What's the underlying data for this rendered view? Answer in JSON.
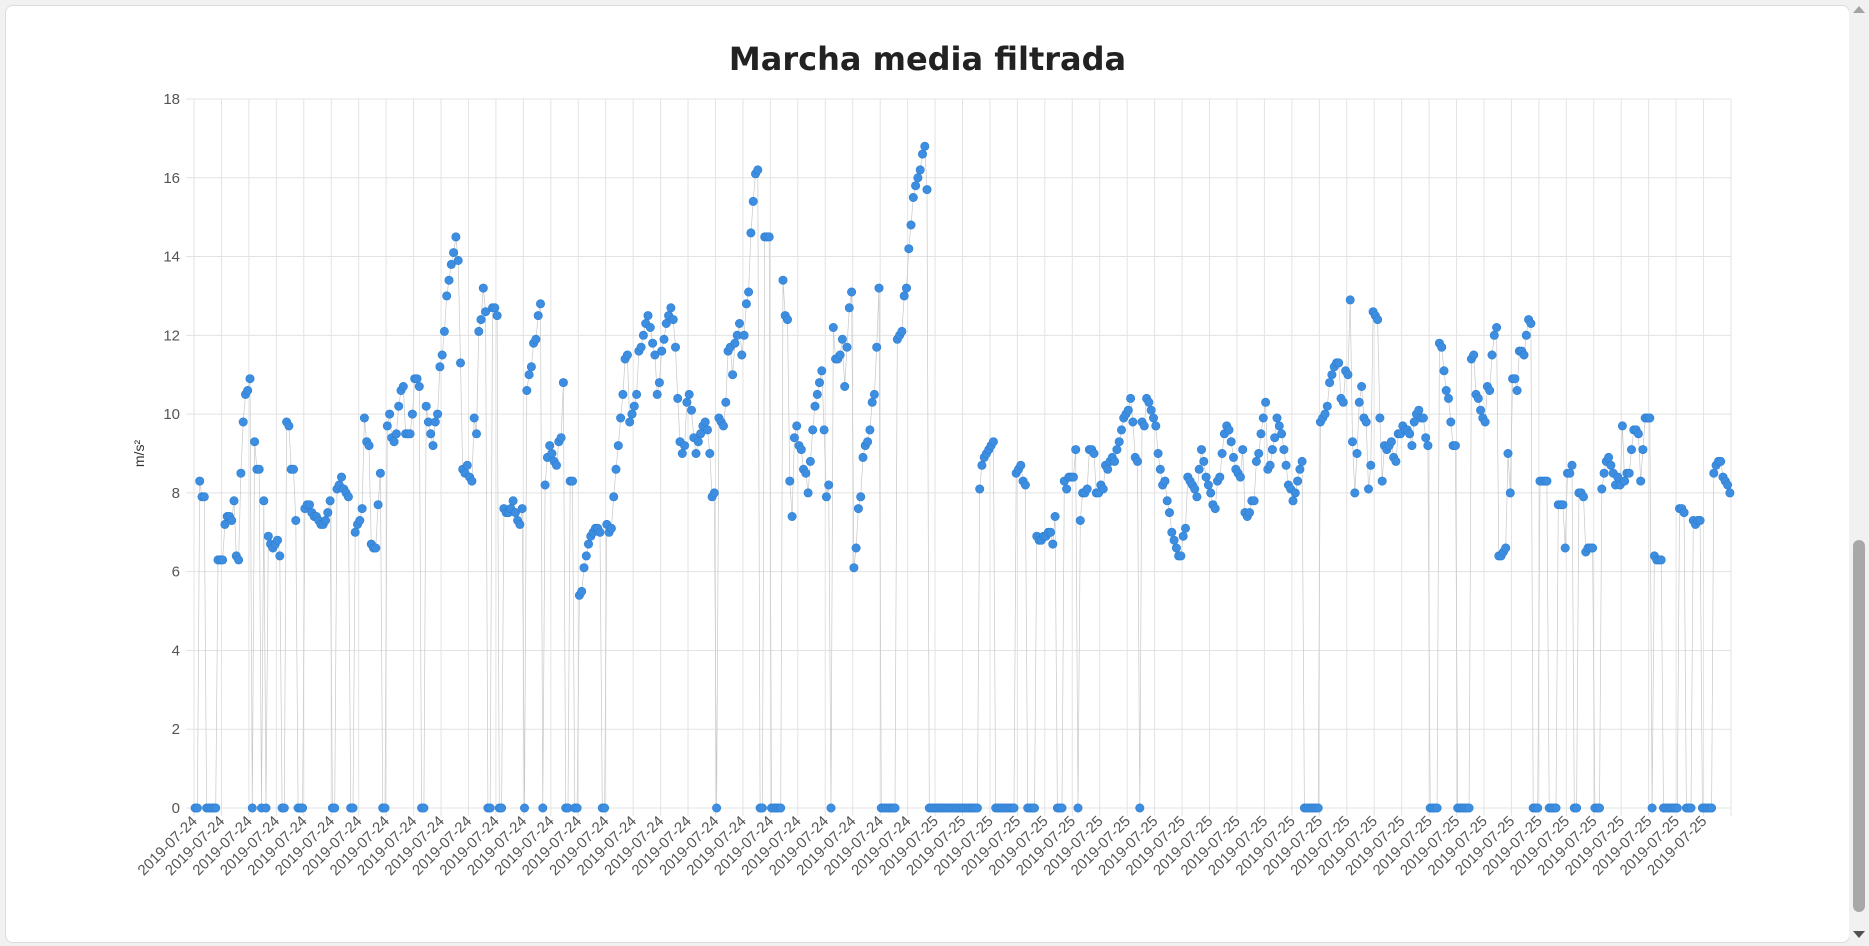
{
  "chart_data": {
    "type": "scatter",
    "title": "Marcha media filtrada",
    "xlabel": "",
    "ylabel": "m/s²",
    "ylim": [
      0,
      18
    ],
    "yticks": [
      0,
      2,
      4,
      6,
      8,
      10,
      12,
      14,
      16,
      18
    ],
    "grid": true,
    "legend": "none",
    "point_color": "#3d8ee0",
    "line_color": "#c8c8c8",
    "categories": [
      "2019-07-24",
      "2019-07-24",
      "2019-07-24",
      "2019-07-24",
      "2019-07-24",
      "2019-07-24",
      "2019-07-24",
      "2019-07-24",
      "2019-07-24",
      "2019-07-24",
      "2019-07-24",
      "2019-07-24",
      "2019-07-24",
      "2019-07-24",
      "2019-07-24",
      "2019-07-24",
      "2019-07-24",
      "2019-07-24",
      "2019-07-24",
      "2019-07-24",
      "2019-07-24",
      "2019-07-24",
      "2019-07-24",
      "2019-07-24",
      "2019-07-24",
      "2019-07-24",
      "2019-07-24",
      "2019-07-25",
      "2019-07-25",
      "2019-07-25",
      "2019-07-25",
      "2019-07-25",
      "2019-07-25",
      "2019-07-25",
      "2019-07-25",
      "2019-07-25",
      "2019-07-25",
      "2019-07-25",
      "2019-07-25",
      "2019-07-25",
      "2019-07-25",
      "2019-07-25",
      "2019-07-25",
      "2019-07-25",
      "2019-07-25",
      "2019-07-25",
      "2019-07-25",
      "2019-07-25",
      "2019-07-25",
      "2019-07-25",
      "2019-07-25",
      "2019-07-25",
      "2019-07-25",
      "2019-07-25",
      "2019-07-25",
      "2019-07-25"
    ],
    "series": [
      {
        "values": [
          0,
          0,
          8.3,
          7.9,
          7.9,
          0,
          0,
          0,
          0,
          0,
          6.3,
          6.3,
          6.3,
          7.2,
          7.4,
          7.4,
          7.3,
          7.8,
          6.4,
          6.3,
          8.5,
          9.8,
          10.5,
          10.6,
          10.9,
          0,
          9.3,
          8.6,
          8.6,
          0,
          7.8,
          0,
          6.9,
          6.7,
          6.6,
          6.7,
          6.8,
          6.4,
          0,
          0,
          9.8,
          9.7,
          8.6,
          8.6,
          7.3,
          0,
          0,
          0,
          7.6,
          7.7,
          7.7,
          7.5,
          7.4,
          7.4,
          7.3,
          7.2,
          7.2,
          7.3,
          7.5,
          7.8,
          0,
          0,
          8.1,
          8.2,
          8.4,
          8.1,
          8.0,
          7.9,
          0,
          0,
          7.0,
          7.2,
          7.3,
          7.6,
          9.9,
          9.3,
          9.2,
          6.7,
          6.6,
          6.6,
          7.7,
          8.5,
          0,
          0,
          9.7,
          10.0,
          9.4,
          9.3,
          9.5,
          10.2,
          10.6,
          10.7,
          9.5,
          9.5,
          9.5,
          10.0,
          10.9,
          10.9,
          10.7,
          0,
          0,
          10.2,
          9.8,
          9.5,
          9.2,
          9.8,
          10.0,
          11.2,
          11.5,
          12.1,
          13.0,
          13.4,
          13.8,
          14.1,
          14.5,
          13.9,
          11.3,
          8.6,
          8.5,
          8.7,
          8.4,
          8.3,
          9.9,
          9.5,
          12.1,
          12.4,
          13.2,
          12.6,
          0,
          0,
          12.7,
          12.7,
          12.5,
          0,
          0,
          7.6,
          7.5,
          7.5,
          7.6,
          7.8,
          7.5,
          7.3,
          7.2,
          7.6,
          0,
          10.6,
          11.0,
          11.2,
          11.8,
          11.9,
          12.5,
          12.8,
          0,
          8.2,
          8.9,
          9.2,
          9.0,
          8.8,
          8.7,
          9.3,
          9.4,
          10.8,
          0,
          0,
          8.3,
          8.3,
          0,
          0,
          5.4,
          5.5,
          6.1,
          6.4,
          6.7,
          6.9,
          7.0,
          7.1,
          7.1,
          7.0,
          0,
          0,
          7.2,
          7.0,
          7.1,
          7.9,
          8.6,
          9.2,
          9.9,
          10.5,
          11.4,
          11.5,
          9.8,
          10.0,
          10.2,
          10.5,
          11.6,
          11.7,
          12.0,
          12.3,
          12.5,
          12.2,
          11.8,
          11.5,
          10.5,
          10.8,
          11.6,
          11.9,
          12.3,
          12.5,
          12.7,
          12.4,
          11.7,
          10.4,
          9.3,
          9.0,
          9.2,
          10.3,
          10.5,
          10.1,
          9.4,
          9.0,
          9.3,
          9.5,
          9.7,
          9.8,
          9.6,
          9.0,
          7.9,
          8.0,
          0,
          9.9,
          9.8,
          9.7,
          10.3,
          11.6,
          11.7,
          11.0,
          11.8,
          12.0,
          12.3,
          11.5,
          12.0,
          12.8,
          13.1,
          14.6,
          15.4,
          16.1,
          16.2,
          0,
          0,
          14.5,
          14.5,
          14.5,
          0,
          0,
          0,
          0,
          0,
          13.4,
          12.5,
          12.4,
          8.3,
          7.4,
          9.4,
          9.7,
          9.2,
          9.1,
          8.6,
          8.5,
          8.0,
          8.8,
          9.6,
          10.2,
          10.5,
          10.8,
          11.1,
          9.6,
          7.9,
          8.2,
          0,
          12.2,
          11.4,
          11.4,
          11.5,
          11.9,
          10.7,
          11.7,
          12.7,
          13.1,
          6.1,
          6.6,
          7.6,
          7.9,
          8.9,
          9.2,
          9.3,
          9.6,
          10.3,
          10.5,
          11.7,
          13.2,
          0,
          0,
          0,
          0,
          0,
          0,
          0,
          11.9,
          12.0,
          12.1,
          13.0,
          13.2,
          14.2,
          14.8,
          15.5,
          15.8,
          16.0,
          16.2,
          16.6,
          16.8,
          15.7,
          0,
          0,
          0,
          0,
          0,
          0,
          0,
          0,
          0,
          0,
          0,
          0,
          0,
          0,
          0,
          0,
          0,
          0,
          0,
          0,
          0,
          0,
          8.1,
          8.7,
          8.9,
          9.0,
          9.1,
          9.2,
          9.3,
          0,
          0,
          0,
          0,
          0,
          0,
          0,
          0,
          0,
          8.5,
          8.6,
          8.7,
          8.3,
          8.2,
          0,
          0,
          0,
          0,
          6.9,
          6.8,
          6.8,
          6.9,
          6.9,
          7.0,
          7.0,
          6.7,
          7.4,
          0,
          0,
          0,
          8.3,
          8.1,
          8.4,
          8.4,
          8.4,
          9.1,
          0,
          7.3,
          8.0,
          8.0,
          8.1,
          9.1,
          9.1,
          9.0,
          8.0,
          8.0,
          8.2,
          8.1,
          8.7,
          8.6,
          8.8,
          8.9,
          8.8,
          9.1,
          9.3,
          9.6,
          9.9,
          10.0,
          10.1,
          10.4,
          9.8,
          8.9,
          8.8,
          0,
          9.8,
          9.7,
          10.4,
          10.3,
          10.1,
          9.9,
          9.7,
          9.0,
          8.6,
          8.2,
          8.3,
          7.8,
          7.5,
          7.0,
          6.8,
          6.6,
          6.4,
          6.4,
          6.9,
          7.1,
          8.4,
          8.3,
          8.2,
          8.1,
          7.9,
          8.6,
          9.1,
          8.8,
          8.4,
          8.2,
          8.0,
          7.7,
          7.6,
          8.3,
          8.4,
          9.0,
          9.5,
          9.7,
          9.6,
          9.3,
          8.9,
          8.6,
          8.5,
          8.4,
          9.1,
          7.5,
          7.4,
          7.5,
          7.8,
          7.8,
          8.8,
          9.0,
          9.5,
          9.9,
          10.3,
          8.6,
          8.7,
          9.1,
          9.4,
          9.9,
          9.7,
          9.5,
          9.1,
          8.7,
          8.2,
          8.1,
          7.8,
          8.0,
          8.3,
          8.6,
          8.8,
          0,
          0,
          0,
          0,
          0,
          0,
          0,
          9.8,
          9.9,
          10.0,
          10.2,
          10.8,
          11.0,
          11.2,
          11.3,
          11.3,
          10.4,
          10.3,
          11.1,
          11.0,
          12.9,
          9.3,
          8.0,
          9.0,
          10.3,
          10.7,
          9.9,
          9.8,
          8.1,
          8.7,
          12.6,
          12.5,
          12.4,
          9.9,
          8.3,
          9.2,
          9.1,
          9.2,
          9.3,
          8.9,
          8.8,
          9.5,
          9.5,
          9.7,
          9.6,
          9.6,
          9.5,
          9.2,
          9.8,
          10.0,
          10.1,
          9.9,
          9.9,
          9.4,
          9.2,
          0,
          0,
          0,
          0,
          11.8,
          11.7,
          11.1,
          10.6,
          10.4,
          9.8,
          9.2,
          9.2,
          0,
          0,
          0,
          0,
          0,
          0,
          11.4,
          11.5,
          10.5,
          10.4,
          10.1,
          9.9,
          9.8,
          10.7,
          10.6,
          11.5,
          12.0,
          12.2,
          6.4,
          6.4,
          6.5,
          6.6,
          9.0,
          8.0,
          10.9,
          10.9,
          10.6,
          11.6,
          11.6,
          11.5,
          12.0,
          12.4,
          12.3,
          0,
          0,
          0,
          8.3,
          8.3,
          8.3,
          8.3,
          0,
          0,
          0,
          0,
          7.7,
          7.7,
          7.7,
          6.6,
          8.5,
          8.5,
          8.7,
          0,
          0,
          8.0,
          8.0,
          7.9,
          6.5,
          6.6,
          6.6,
          6.6,
          0,
          0,
          0,
          8.1,
          8.5,
          8.8,
          8.9,
          8.7,
          8.5,
          8.2,
          8.4,
          8.2,
          9.7,
          8.3,
          8.5,
          8.5,
          9.1,
          9.6,
          9.6,
          9.5,
          8.3,
          9.1,
          9.9,
          9.9,
          9.9,
          0,
          6.4,
          6.3,
          6.3,
          6.3,
          0,
          0,
          0,
          0,
          0,
          0,
          0,
          7.6,
          7.6,
          7.5,
          0,
          0,
          0,
          7.3,
          7.2,
          7.3,
          7.3,
          0,
          0,
          0,
          0,
          0,
          8.5,
          8.7,
          8.8,
          8.8,
          8.4,
          8.3,
          8.2,
          8.0
        ]
      }
    ]
  }
}
